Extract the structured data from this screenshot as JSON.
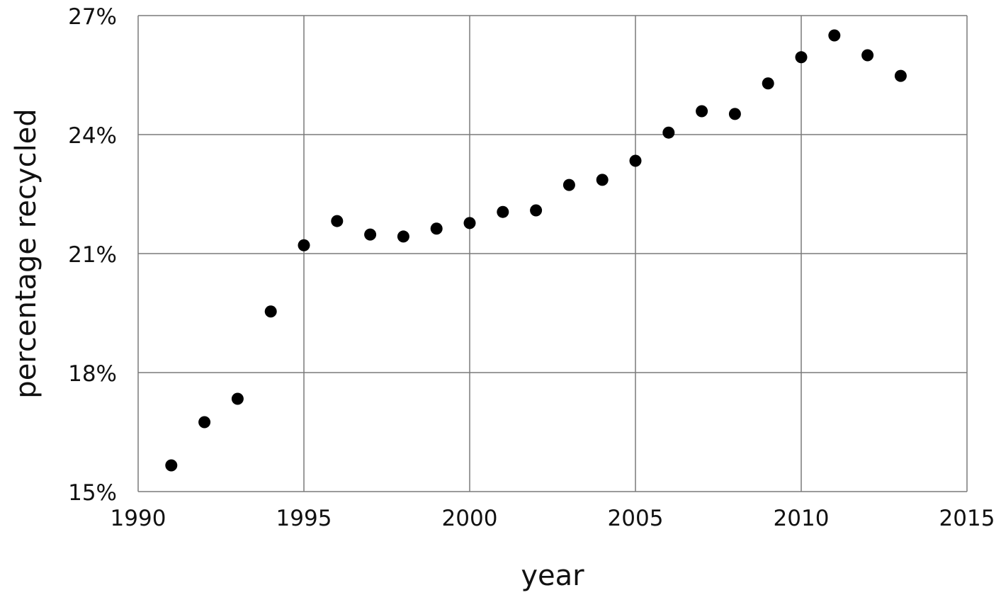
{
  "chart_data": {
    "type": "scatter",
    "title": "",
    "xlabel": "year",
    "ylabel": "percentage recycled",
    "xlim": [
      1990,
      2015
    ],
    "ylim": [
      15,
      27
    ],
    "x_ticks": [
      1990,
      1995,
      2000,
      2005,
      2010,
      2015
    ],
    "x_tick_labels": [
      "1990",
      "1995",
      "2000",
      "2005",
      "2010",
      "2015"
    ],
    "y_ticks": [
      15,
      18,
      21,
      24,
      27
    ],
    "y_tick_labels": [
      "15%",
      "18%",
      "21%",
      "24%",
      "27%"
    ],
    "grid": true,
    "marker_color": "#000000",
    "grid_color": "#7a7a7a",
    "points": [
      {
        "x": 1991,
        "y": 15.66
      },
      {
        "x": 1992,
        "y": 16.75
      },
      {
        "x": 1993,
        "y": 17.34
      },
      {
        "x": 1994,
        "y": 19.54
      },
      {
        "x": 1995,
        "y": 21.21
      },
      {
        "x": 1996,
        "y": 21.82
      },
      {
        "x": 1997,
        "y": 21.48
      },
      {
        "x": 1998,
        "y": 21.43
      },
      {
        "x": 1999,
        "y": 21.63
      },
      {
        "x": 2000,
        "y": 21.77
      },
      {
        "x": 2001,
        "y": 22.05
      },
      {
        "x": 2002,
        "y": 22.09
      },
      {
        "x": 2003,
        "y": 22.73
      },
      {
        "x": 2004,
        "y": 22.86
      },
      {
        "x": 2005,
        "y": 23.34
      },
      {
        "x": 2006,
        "y": 24.05
      },
      {
        "x": 2007,
        "y": 24.59
      },
      {
        "x": 2008,
        "y": 24.52
      },
      {
        "x": 2009,
        "y": 25.29
      },
      {
        "x": 2010,
        "y": 25.95
      },
      {
        "x": 2011,
        "y": 26.5
      },
      {
        "x": 2012,
        "y": 26.0
      },
      {
        "x": 2013,
        "y": 25.48
      }
    ]
  }
}
